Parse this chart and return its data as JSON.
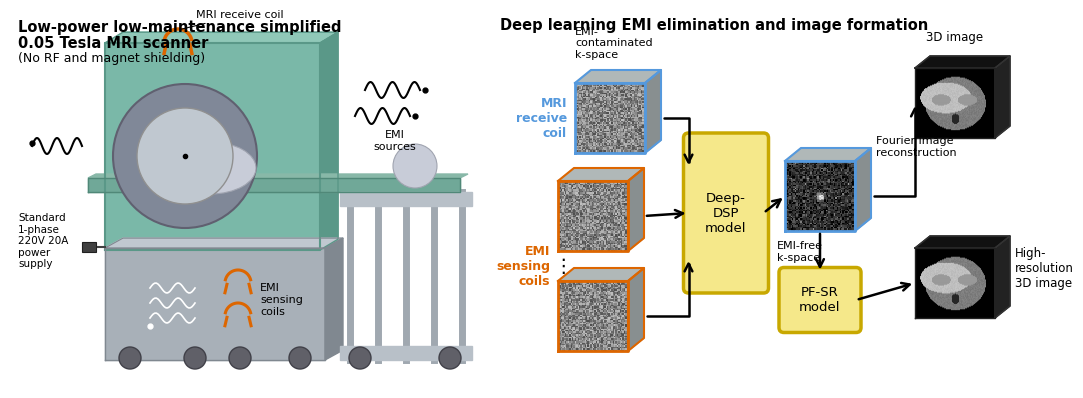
{
  "title_left_line1": "Low-power low-maintenance simplified",
  "title_left_line2": "0.05 Tesla MRI scanner",
  "title_left_line3": "(No RF and magnet shielding)",
  "title_right": "Deep learning EMI elimination and image formation",
  "bg_color": "#ffffff",
  "blue_color": "#5599dd",
  "orange_color": "#dd6600",
  "gold_color": "#f5e88a",
  "gold_border": "#c8a800",
  "dark_color": "#111111",
  "teal_color": "#7ab8a8",
  "teal_dark": "#5a9888",
  "teal_light": "#90c8b8",
  "gray_cab": "#a8b0b8",
  "gray_dark": "#808890",
  "gray_light": "#c0c8d0",
  "label_mri_coil": "MRI receive coil",
  "label_emi_sources": "EMI\nsources",
  "label_emi_sensing_left": "EMI\nsensing\ncoils",
  "label_standard": "Standard\n1-phase\n220V 20A\npower\nsupply",
  "label_emi_contaminated": "EMI-\ncontaminated\nk-space",
  "label_mri_receive": "MRI\nreceive\ncoil",
  "label_emi_sensing_coils": "EMI\nsensing\ncoils",
  "label_deep_dsp": "Deep-\nDSP\nmodel",
  "label_fourier": "Fourier image\nreconstruction",
  "label_emi_free": "EMI-free\nk-space",
  "label_pf_sr": "PF-SR\nmodel",
  "label_3d_image": "3D image",
  "label_high_res": "High-\nresolution\n3D image"
}
